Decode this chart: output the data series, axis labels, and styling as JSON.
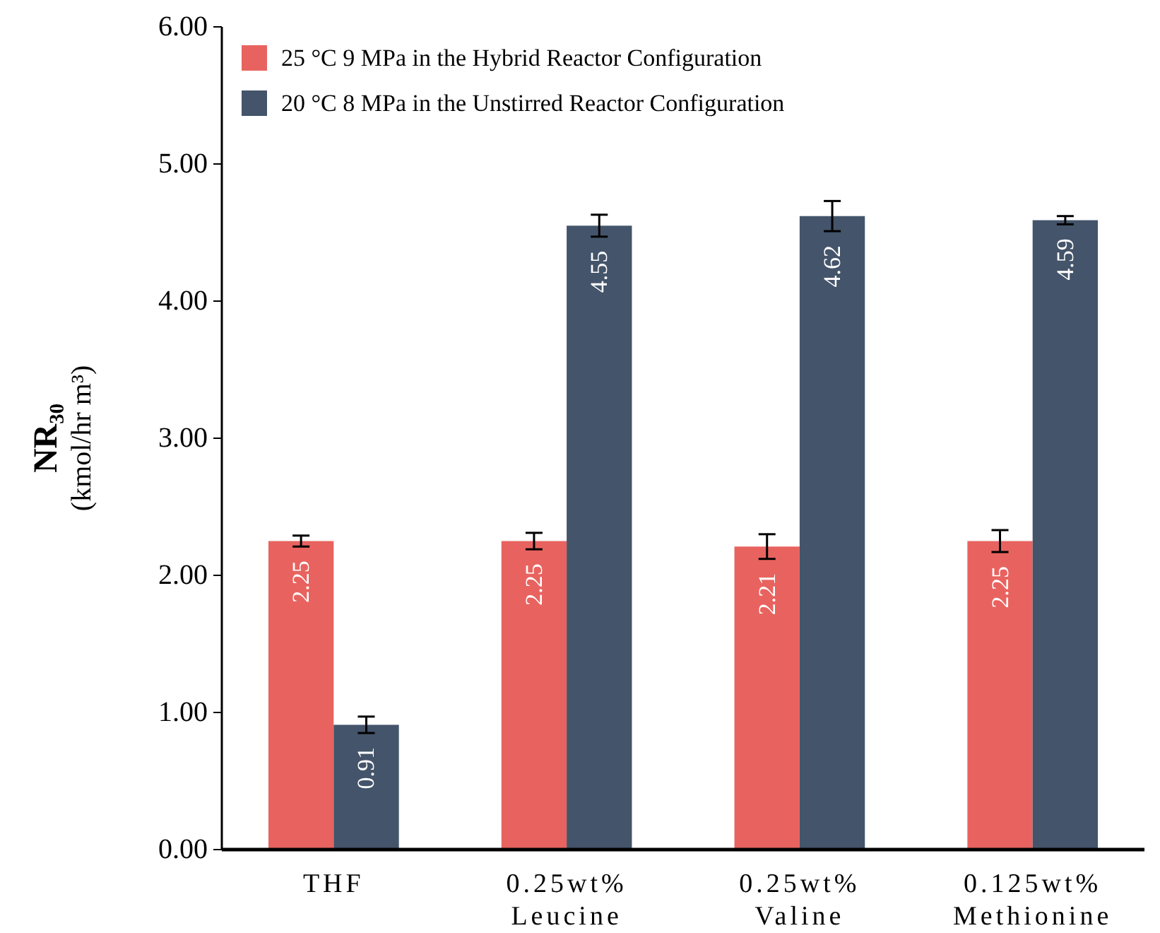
{
  "chart_data": {
    "type": "bar",
    "ylabel": "NR₃₀\n(kmol/hr m³)",
    "categories": [
      "THF",
      "0.25wt%\nLeucine",
      "0.25wt%\nValine",
      "0.125wt%\nMethionine"
    ],
    "series": [
      {
        "name": "25 °C 9 MPa in the Hybrid Reactor Configuration",
        "color": "#e8635f",
        "values": [
          2.25,
          2.25,
          2.21,
          2.25
        ],
        "errors": [
          0.04,
          0.06,
          0.09,
          0.08
        ]
      },
      {
        "name": "20 °C 8 MPa in the Unstirred Reactor Configuration",
        "color": "#44546a",
        "values": [
          0.91,
          4.55,
          4.62,
          4.59
        ],
        "errors": [
          0.06,
          0.08,
          0.11,
          0.03
        ]
      }
    ],
    "ylim": [
      0,
      6
    ],
    "yticks": [
      {
        "value": 0,
        "label": "0.00"
      },
      {
        "value": 1,
        "label": "1.00"
      },
      {
        "value": 2,
        "label": "2.00"
      },
      {
        "value": 3,
        "label": "3.00"
      },
      {
        "value": 4,
        "label": "4.00"
      },
      {
        "value": 5,
        "label": "5.00"
      },
      {
        "value": 6,
        "label": "6.00"
      }
    ],
    "data_labels": true,
    "legend": "top left",
    "grid": false
  }
}
